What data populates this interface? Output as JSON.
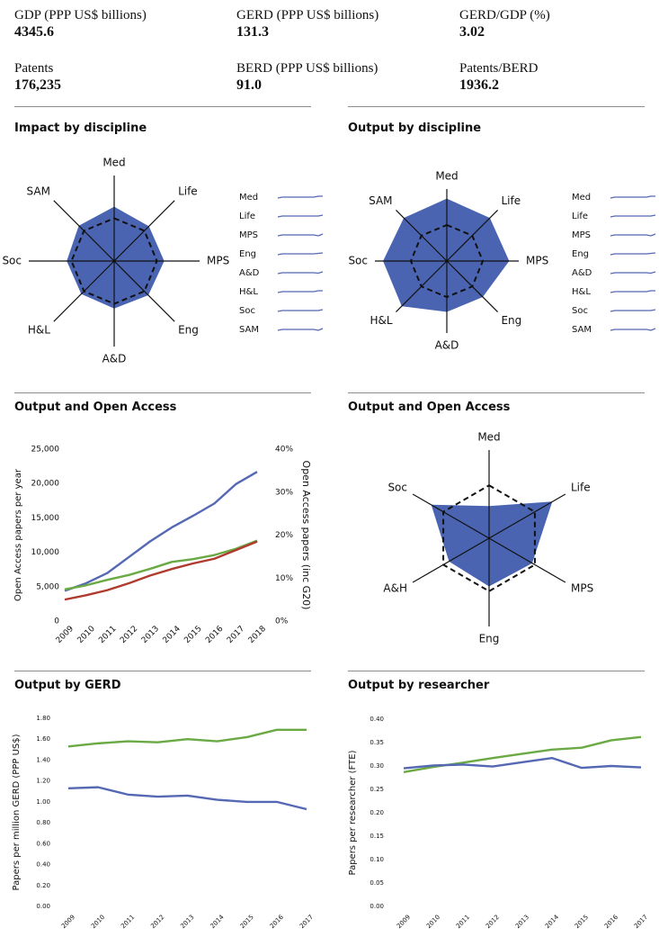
{
  "stats": [
    {
      "label": "GDP (PPP US$ billions)",
      "value": "4345.6"
    },
    {
      "label": "GERD (PPP US$ billions)",
      "value": "131.3"
    },
    {
      "label": "GERD/GDP (%)",
      "value": "3.02"
    },
    {
      "label": "Patents",
      "value": "176,235"
    },
    {
      "label": "BERD (PPP US$ billions)",
      "value": "91.0"
    },
    {
      "label": "Patents/BERD",
      "value": "1936.2"
    }
  ],
  "sections": {
    "impact_by_discipline": "Impact by discipline",
    "output_by_discipline": "Output by discipline",
    "output_open_access_left": "Output and Open Access",
    "output_open_access_right": "Output and Open Access",
    "output_by_gerd": "Output by GERD",
    "output_by_researcher": "Output by researcher"
  },
  "colors": {
    "fill": "#4a64b2",
    "blue": "#5568b4",
    "green": "#6aaa44",
    "red": "#b03a2e",
    "axis": "#111111"
  },
  "chart_data": [
    {
      "type": "radar",
      "title": "Impact by discipline",
      "axes": [
        "Med",
        "Life",
        "MPS",
        "Eng",
        "A&D",
        "H&L",
        "Soc",
        "SAM"
      ],
      "values": [
        0.63,
        0.57,
        0.58,
        0.56,
        0.55,
        0.54,
        0.55,
        0.58
      ],
      "reference": 0.5,
      "legend": [
        "Med",
        "Life",
        "MPS",
        "Eng",
        "A&D",
        "H&L",
        "Soc",
        "SAM"
      ]
    },
    {
      "type": "radar",
      "title": "Output by discipline",
      "axes": [
        "Med",
        "Life",
        "MPS",
        "Eng",
        "A&D",
        "H&L",
        "Soc",
        "SAM"
      ],
      "values": [
        0.86,
        0.84,
        0.86,
        0.7,
        0.7,
        0.88,
        0.88,
        0.84
      ],
      "reference": 0.5,
      "legend": [
        "Med",
        "Life",
        "MPS",
        "Eng",
        "A&D",
        "H&L",
        "Soc",
        "SAM"
      ]
    },
    {
      "type": "line",
      "title": "Output and Open Access",
      "x": [
        2009,
        2010,
        2011,
        2012,
        2013,
        2014,
        2015,
        2016,
        2017,
        2018
      ],
      "ylabel": "Open Access papers per year",
      "y2label": "Open Access papers (inc G20)",
      "ylim": [
        0,
        25000
      ],
      "yticks": [
        "0",
        "5,000",
        "10,000",
        "15,000",
        "20,000",
        "25,000"
      ],
      "y2lim": [
        0,
        40
      ],
      "y2ticks": [
        "0%",
        "10%",
        "20%",
        "30%",
        "40%"
      ],
      "series": [
        {
          "color": "blue",
          "axis": "left",
          "values": [
            4400,
            5500,
            7000,
            9300,
            11600,
            13600,
            15300,
            17100,
            19900,
            21700
          ]
        },
        {
          "color": "green",
          "axis": "left",
          "values": [
            4600,
            5200,
            6000,
            6700,
            7600,
            8600,
            9000,
            9600,
            10500,
            11700
          ]
        },
        {
          "color": "red",
          "axis": "right",
          "values": [
            5.0,
            6.0,
            7.2,
            8.8,
            10.6,
            12.1,
            13.4,
            14.5,
            16.5,
            18.5
          ]
        }
      ]
    },
    {
      "type": "radar",
      "title": "Output and Open Access",
      "axes": [
        "Med",
        "Life",
        "MPS",
        "Eng",
        "A&H",
        "Soc"
      ],
      "values": [
        0.36,
        0.82,
        0.56,
        0.54,
        0.52,
        0.75
      ],
      "reference": 0.6
    },
    {
      "type": "line",
      "title": "Output by GERD",
      "x": [
        2009,
        2010,
        2011,
        2012,
        2013,
        2014,
        2015,
        2016,
        2017
      ],
      "ylabel": "Papers per million GERD (PPP US$)",
      "ylim": [
        0,
        1.8
      ],
      "yticks": [
        "0.00",
        "0.20",
        "0.40",
        "0.60",
        "0.80",
        "1.00",
        "1.20",
        "1.40",
        "1.60",
        "1.80"
      ],
      "series": [
        {
          "color": "green",
          "values": [
            1.53,
            1.56,
            1.58,
            1.57,
            1.6,
            1.58,
            1.62,
            1.69,
            1.69
          ]
        },
        {
          "color": "blue",
          "values": [
            1.13,
            1.14,
            1.07,
            1.05,
            1.06,
            1.02,
            1.0,
            1.0,
            0.93
          ]
        }
      ]
    },
    {
      "type": "line",
      "title": "Output by researcher",
      "x": [
        2009,
        2010,
        2011,
        2012,
        2013,
        2014,
        2015,
        2016,
        2017
      ],
      "ylabel": "Papers per researcher (FTE)",
      "ylim": [
        0,
        0.4
      ],
      "yticks": [
        "0.00",
        "0.05",
        "0.10",
        "0.15",
        "0.20",
        "0.25",
        "0.30",
        "0.35",
        "0.40"
      ],
      "series": [
        {
          "color": "green",
          "values": [
            0.287,
            0.298,
            0.307,
            0.317,
            0.326,
            0.335,
            0.339,
            0.355,
            0.362
          ]
        },
        {
          "color": "blue",
          "values": [
            0.295,
            0.301,
            0.303,
            0.299,
            0.308,
            0.317,
            0.296,
            0.3,
            0.297
          ]
        }
      ]
    }
  ]
}
